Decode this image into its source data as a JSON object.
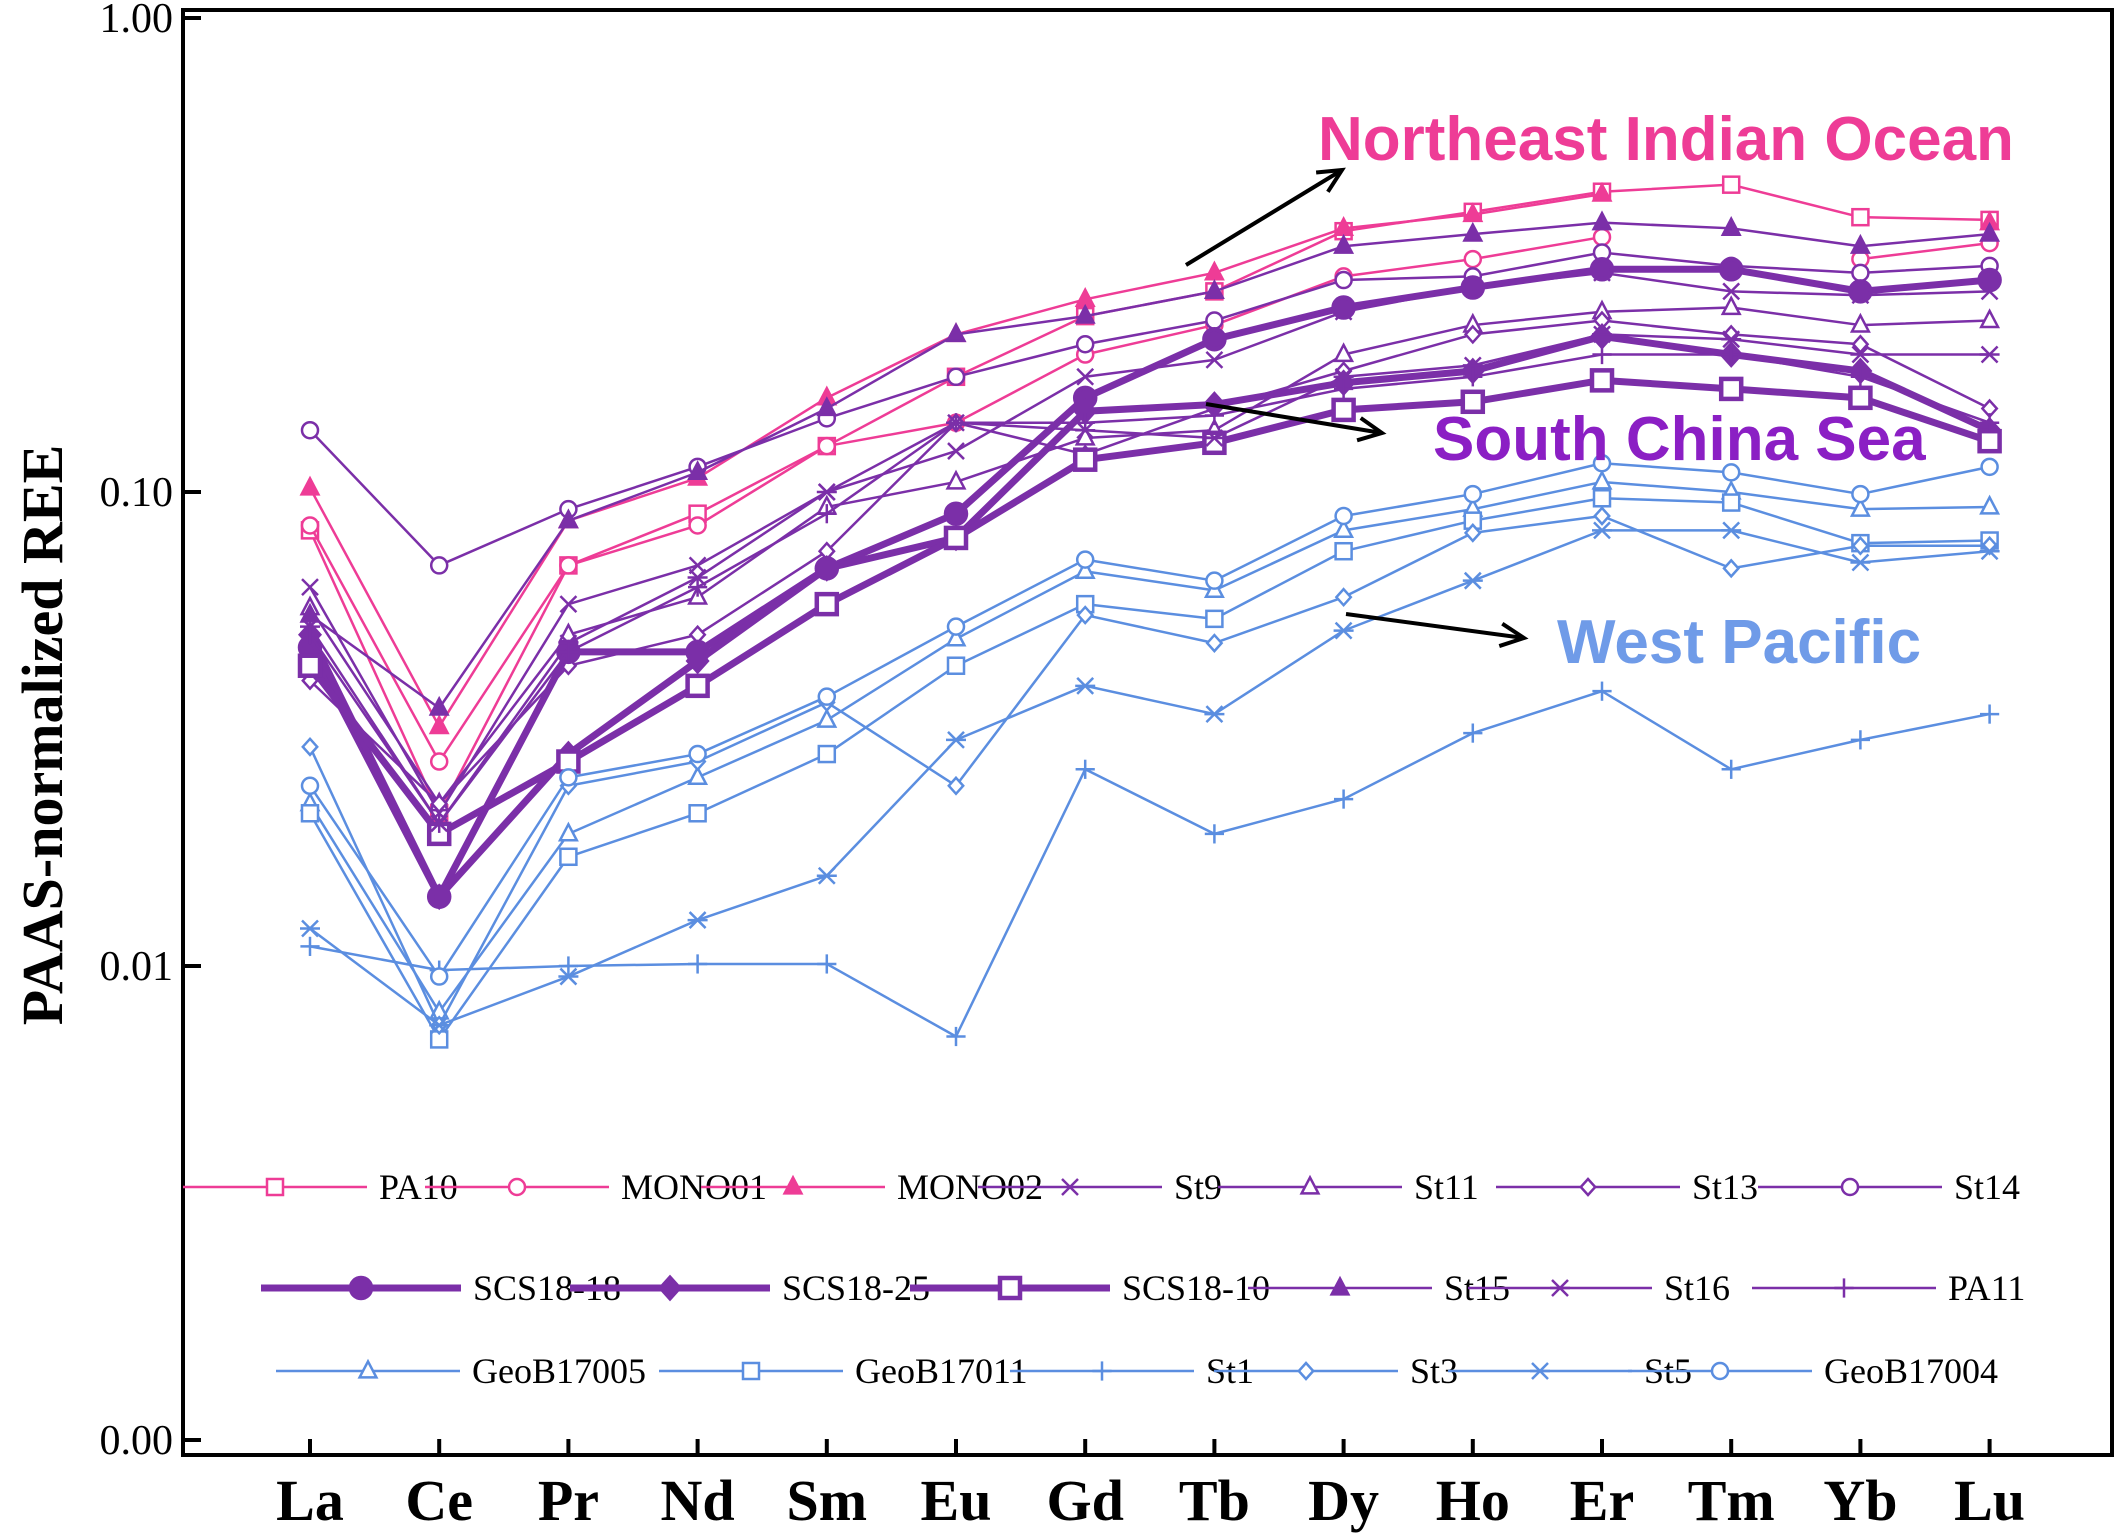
{
  "chart_data": {
    "type": "line",
    "title": "",
    "xlabel": "",
    "ylabel": "PAAS-normalized REE",
    "yscale": "log",
    "ylim": [
      0.001,
      1.0
    ],
    "ytick_values": [
      1.0,
      0.1,
      0.01,
      0.001
    ],
    "ytick_labels": [
      "1.00",
      "0.10",
      "0.01",
      "0.00"
    ],
    "categories": [
      "La",
      "Ce",
      "Pr",
      "Nd",
      "Sm",
      "Eu",
      "Gd",
      "Tb",
      "Dy",
      "Ho",
      "Er",
      "Tm",
      "Yb",
      "Lu"
    ],
    "colors": {
      "pink": "#EE3C96",
      "purple": "#7B2FA8",
      "blue": "#5B8EE0",
      "black": "#000000"
    },
    "annotations": [
      {
        "text": "Northeast Indian Ocean",
        "color": "#EE3C96"
      },
      {
        "text": "South China Sea",
        "color": "#8B1FC4"
      },
      {
        "text": "West Pacific",
        "color": "#6F9BE8"
      }
    ],
    "series": [
      {
        "name": "PA10",
        "color": "#EE3C96",
        "marker": "square-open",
        "bold": false,
        "values": [
          0.083,
          0.021,
          0.07,
          0.09,
          0.125,
          0.175,
          0.235,
          0.265,
          0.355,
          0.39,
          0.43,
          0.445,
          0.38,
          0.375
        ]
      },
      {
        "name": "MONO01",
        "color": "#EE3C96",
        "marker": "circle-open",
        "bold": false,
        "values": [
          0.085,
          0.027,
          0.07,
          0.085,
          0.125,
          0.14,
          0.195,
          0.225,
          0.285,
          0.31,
          0.345,
          null,
          0.31,
          0.335
        ]
      },
      {
        "name": "MONO02",
        "color": "#EE3C96",
        "marker": "triangle-filled",
        "bold": false,
        "values": [
          0.102,
          0.032,
          0.087,
          0.107,
          0.158,
          0.215,
          0.255,
          0.29,
          0.36,
          0.385,
          0.425,
          null,
          null,
          0.37
        ]
      },
      {
        "name": "St9",
        "color": "#7B2FA8",
        "marker": "x",
        "bold": false,
        "values": [
          0.063,
          0.021,
          0.058,
          0.07,
          0.1,
          0.122,
          0.175,
          0.19,
          0.24,
          0.27,
          0.29,
          0.265,
          0.26,
          0.265
        ]
      },
      {
        "name": "St11",
        "color": "#7B2FA8",
        "marker": "triangle-open",
        "bold": false,
        "values": [
          0.057,
          0.022,
          0.05,
          0.06,
          0.093,
          0.105,
          0.13,
          0.135,
          0.195,
          0.225,
          0.24,
          0.245,
          0.225,
          0.23
        ]
      },
      {
        "name": "St13",
        "color": "#7B2FA8",
        "marker": "diamond-open",
        "bold": false,
        "values": [
          0.04,
          0.022,
          0.043,
          0.05,
          0.075,
          0.14,
          0.12,
          0.15,
          0.18,
          0.215,
          0.23,
          0.215,
          0.205,
          0.15
        ]
      },
      {
        "name": "St14",
        "color": "#7B2FA8",
        "marker": "circle-open",
        "bold": false,
        "values": [
          0.135,
          0.07,
          0.092,
          0.113,
          0.143,
          0.175,
          0.205,
          0.23,
          0.28,
          0.285,
          0.32,
          0.3,
          0.29,
          0.3
        ]
      },
      {
        "name": "SCS18-18",
        "color": "#7B2FA8",
        "marker": "circle-filled",
        "bold": true,
        "values": [
          0.047,
          0.014,
          0.046,
          0.046,
          0.069,
          0.09,
          0.158,
          0.21,
          0.245,
          0.27,
          0.295,
          0.295,
          0.265,
          0.28
        ]
      },
      {
        "name": "SCS18-25",
        "color": "#7B2FA8",
        "marker": "diamond-filled",
        "bold": true,
        "values": [
          0.05,
          0.014,
          0.028,
          0.044,
          0.069,
          0.08,
          0.148,
          0.153,
          0.17,
          0.18,
          0.213,
          0.195,
          0.18,
          0.135
        ]
      },
      {
        "name": "SCS18-10",
        "color": "#7B2FA8",
        "marker": "square-open",
        "bold": true,
        "values": [
          0.043,
          0.019,
          0.027,
          0.039,
          0.058,
          0.08,
          0.117,
          0.127,
          0.149,
          0.155,
          0.172,
          0.165,
          0.158,
          0.128
        ]
      },
      {
        "name": "St15",
        "color": "#7B2FA8",
        "marker": "triangle-filled",
        "bold": false,
        "values": [
          0.055,
          0.035,
          0.087,
          0.11,
          0.15,
          0.215,
          0.235,
          0.265,
          0.33,
          0.35,
          0.37,
          0.36,
          0.33,
          0.35
        ]
      },
      {
        "name": "St16",
        "color": "#7B2FA8",
        "marker": "asterisk",
        "bold": false,
        "values": [
          0.052,
          0.02,
          0.048,
          0.066,
          0.1,
          0.14,
          0.135,
          0.13,
          0.175,
          0.185,
          0.215,
          0.21,
          0.195,
          0.195
        ]
      },
      {
        "name": "PA11",
        "color": "#7B2FA8",
        "marker": "plus",
        "bold": false,
        "values": [
          0.05,
          0.02,
          0.046,
          0.063,
          0.09,
          0.14,
          0.14,
          0.145,
          0.165,
          0.175,
          0.195,
          0.195,
          0.175,
          0.14
        ]
      },
      {
        "name": "GeoB17005",
        "color": "#5B8EE0",
        "marker": "triangle-open",
        "bold": false,
        "values": [
          0.022,
          0.008,
          0.019,
          0.025,
          0.033,
          0.049,
          0.068,
          0.062,
          0.083,
          0.092,
          0.105,
          0.1,
          0.092,
          0.093
        ]
      },
      {
        "name": "GeoB17011",
        "color": "#5B8EE0",
        "marker": "square-open",
        "bold": false,
        "values": [
          0.021,
          0.007,
          0.017,
          0.021,
          0.028,
          0.043,
          0.058,
          0.054,
          0.075,
          0.087,
          0.097,
          0.095,
          0.078,
          0.079
        ]
      },
      {
        "name": "St1",
        "color": "#5B8EE0",
        "marker": "plus",
        "bold": false,
        "values": [
          0.011,
          0.0098,
          0.01,
          0.0101,
          0.0101,
          0.0071,
          0.026,
          0.019,
          0.0225,
          0.031,
          0.038,
          0.026,
          0.03,
          0.034
        ]
      },
      {
        "name": "St3",
        "color": "#5B8EE0",
        "marker": "diamond-open",
        "bold": false,
        "values": [
          0.029,
          0.0075,
          0.024,
          0.027,
          0.036,
          0.024,
          0.055,
          0.048,
          0.06,
          0.082,
          0.089,
          0.069,
          0.077,
          0.077
        ]
      },
      {
        "name": "St5",
        "color": "#5B8EE0",
        "marker": "asterisk",
        "bold": false,
        "values": [
          0.012,
          0.0075,
          0.0095,
          0.0125,
          0.0155,
          0.03,
          0.039,
          0.034,
          0.051,
          0.065,
          0.083,
          0.083,
          0.071,
          0.075
        ]
      },
      {
        "name": "GeoB17004",
        "color": "#5B8EE0",
        "marker": "circle-open",
        "bold": false,
        "values": [
          0.024,
          0.0095,
          0.025,
          0.028,
          0.037,
          0.052,
          0.072,
          0.065,
          0.089,
          0.099,
          0.115,
          0.11,
          0.099,
          0.113
        ]
      }
    ]
  }
}
